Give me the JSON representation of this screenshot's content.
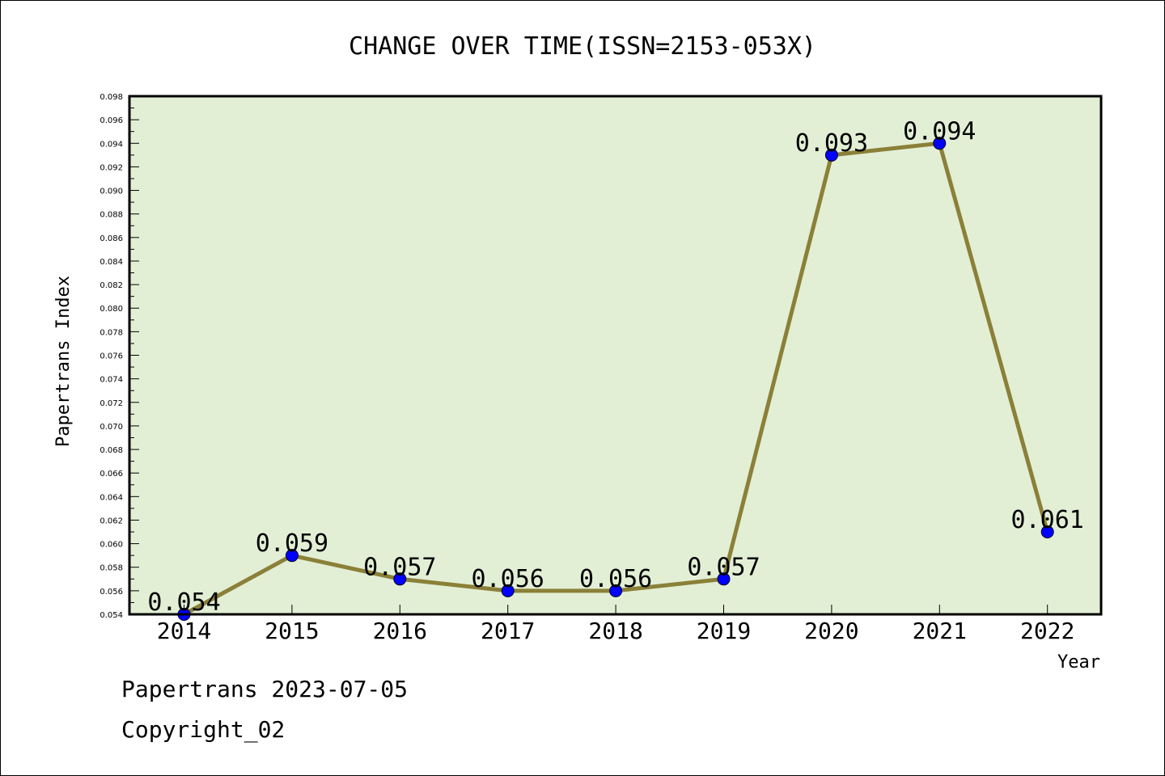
{
  "chart_data": {
    "type": "line",
    "title": "CHANGE OVER TIME(ISSN=2153-053X)",
    "xlabel": "Year",
    "ylabel": "Papertrans Index",
    "categories": [
      "2014",
      "2015",
      "2016",
      "2017",
      "2018",
      "2019",
      "2020",
      "2021",
      "2022"
    ],
    "series": [
      {
        "values": [
          0.054,
          0.059,
          0.057,
          0.056,
          0.056,
          0.057,
          0.093,
          0.094,
          0.061
        ],
        "labels": [
          "0.054",
          "0.059",
          "0.057",
          "0.056",
          "0.056",
          "0.057",
          "0.093",
          "0.094",
          "0.061"
        ]
      }
    ],
    "ylim": [
      0.054,
      0.098
    ],
    "yticks": [
      "0.054",
      "0.056",
      "0.058",
      "0.060",
      "0.062",
      "0.064",
      "0.066",
      "0.068",
      "0.070",
      "0.072",
      "0.074",
      "0.076",
      "0.078",
      "0.080",
      "0.082",
      "0.084",
      "0.086",
      "0.088",
      "0.090",
      "0.092",
      "0.094",
      "0.096",
      "0.098"
    ],
    "grid": false,
    "legend": "none",
    "colors": {
      "plot_background": "#e2efd5",
      "line": "#8b8038",
      "marker": "#0000ff"
    }
  },
  "footer": {
    "source": "Papertrans 2023-07-05",
    "copyright": "Copyright_02"
  }
}
